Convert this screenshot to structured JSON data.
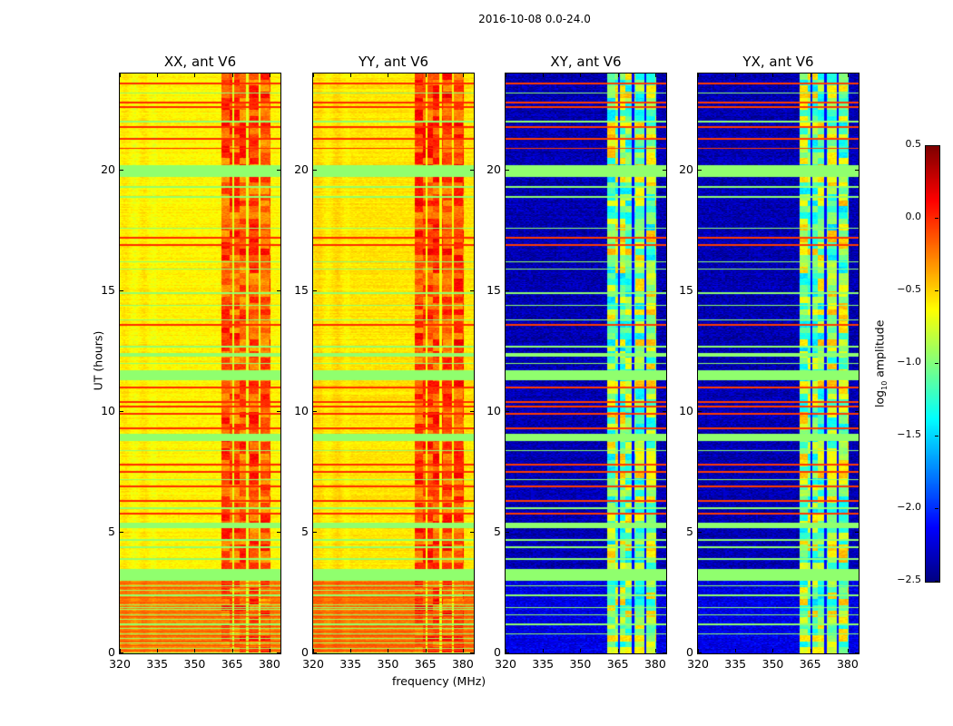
{
  "chart_data": {
    "type": "heatmap",
    "title": "2016-10-08 0.0-24.0",
    "xlabel": "frequency (MHz)",
    "ylabel": "UT (hours)",
    "xlim": [
      320,
      384.4
    ],
    "ylim": [
      0,
      24
    ],
    "xticks": [
      "320",
      "335",
      "350",
      "365",
      "380"
    ],
    "xtick_values": [
      320,
      335,
      350,
      365,
      380
    ],
    "yticks": [
      "0",
      "5",
      "10",
      "15",
      "20"
    ],
    "ytick_values": [
      0,
      5,
      10,
      15,
      20
    ],
    "colormap": "jet",
    "colorbar": {
      "label": "log10 amplitude",
      "label_main": "log",
      "label_sub": "10",
      "label_rest": " amplitude",
      "range": [
        -2.5,
        0.5
      ],
      "ticks": [
        "0.5",
        "0.0",
        "−0.5",
        "−1.0",
        "−1.5",
        "−2.0",
        "−2.5"
      ],
      "tick_values": [
        0.5,
        0.0,
        -0.5,
        -1.0,
        -1.5,
        -2.0,
        -2.5
      ]
    },
    "rfi_band_mhz": [
      360.7,
      380.4
    ],
    "band_gaps_mhz": [
      365.5,
      371.0,
      376.0
    ],
    "flagged_hours": [
      [
        19.7,
        20.2
      ],
      [
        11.3,
        11.7
      ],
      [
        8.8,
        9.1
      ],
      [
        5.2,
        5.4
      ],
      [
        3.0,
        3.5
      ],
      [
        12.3,
        12.45
      ]
    ],
    "flag_level": -0.95,
    "green_line_hours": [
      23.2,
      22.0,
      19.3,
      18.9,
      17.6,
      16.2,
      15.9,
      14.9,
      14.4,
      13.8,
      12.7,
      12.0,
      8.4,
      7.2,
      6.0,
      4.7,
      4.4,
      3.9,
      2.8,
      2.4,
      1.9,
      1.6,
      1.2,
      0.8
    ],
    "red_line_hours": [
      23.6,
      22.8,
      22.6,
      21.8,
      21.3,
      20.9,
      17.2,
      16.9,
      13.6,
      11.0,
      10.4,
      10.2,
      9.9,
      9.3,
      7.8,
      7.5,
      6.9,
      6.3,
      5.8
    ],
    "red_line_level": 0.0,
    "panels": [
      {
        "title": "XX, ant V6",
        "background": -0.6,
        "band": -0.12,
        "band_spread": 0.25,
        "low_hours_background": -0.25
      },
      {
        "title": "YY, ant V6",
        "background": -0.55,
        "band": -0.08,
        "band_spread": 0.25,
        "low_hours_background": -0.2
      },
      {
        "title": "XY, ant V6",
        "background": -2.35,
        "band": -0.95,
        "band_spread": 0.55,
        "low_hours_background": -2.2
      },
      {
        "title": "YX, ant V6",
        "background": -2.35,
        "band": -0.95,
        "band_spread": 0.55,
        "low_hours_background": -2.2
      }
    ]
  }
}
